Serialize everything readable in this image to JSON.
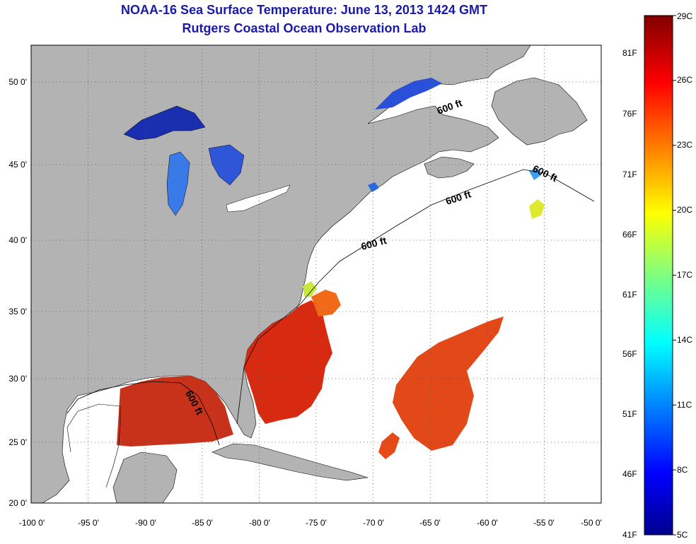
{
  "title": "NOAA-16 Sea Surface Temperature:  June 13, 2013 1424 GMT",
  "subtitle": "Rutgers Coastal Ocean Observation Lab",
  "lat_labels": [
    "50 0'",
    "45 0'",
    "40 0'",
    "35 0'",
    "30 0'",
    "25 0'",
    "20 0'"
  ],
  "lat_values": [
    50,
    45,
    40,
    35,
    30,
    25,
    20
  ],
  "lon_labels": [
    "-100 0'",
    "-95 0'",
    "-90 0'",
    "-85 0'",
    "-80 0'",
    "-75 0'",
    "-70 0'",
    "-65 0'",
    "-60 0'",
    "-55 0'",
    "-50 0'"
  ],
  "lon_values": [
    -100,
    -95,
    -90,
    -85,
    -80,
    -75,
    -70,
    -65,
    -60,
    -55,
    -50
  ],
  "contour_labels": [
    "600 ft",
    "600 ft",
    "600 ft",
    "600 ft",
    "600 ft"
  ],
  "colorbar": {
    "celsius": [
      "29C",
      "26C",
      "23C",
      "20C",
      "17C",
      "14C",
      "11C",
      "8C",
      "5C"
    ],
    "fahrenheit": [
      "81F",
      "76F",
      "71F",
      "66F",
      "61F",
      "56F",
      "51F",
      "46F",
      "41F"
    ],
    "range_c": [
      5,
      29
    ]
  },
  "colors": {
    "land": "#b3b3b3",
    "ocean_nodata": "#ffffff",
    "title": "#1a1aa8"
  }
}
